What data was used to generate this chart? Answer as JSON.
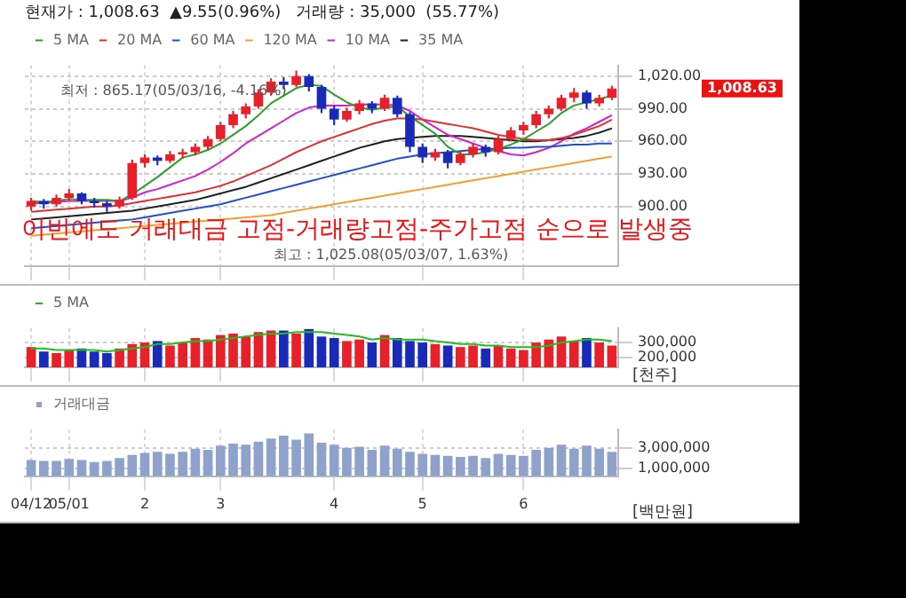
{
  "chart_data": [
    {
      "type": "candlestick",
      "title": "현재가 : 1,008.63  ▲9.55(0.96%)   거래량 : 35,000  (55.77%)",
      "legend": "top left",
      "grid": true,
      "tick_labels": "y",
      "ohlc": [
        [
          900,
          908,
          896,
          905
        ],
        [
          905,
          907,
          898,
          902
        ],
        [
          902,
          911,
          900,
          908
        ],
        [
          908,
          916,
          905,
          912
        ],
        [
          912,
          913,
          902,
          905
        ],
        [
          905,
          908,
          899,
          903
        ],
        [
          903,
          905,
          895,
          900
        ],
        [
          900,
          909,
          898,
          906
        ],
        [
          908,
          943,
          906,
          940
        ],
        [
          940,
          948,
          936,
          945
        ],
        [
          945,
          947,
          938,
          942
        ],
        [
          942,
          951,
          940,
          948
        ],
        [
          948,
          953,
          944,
          950
        ],
        [
          950,
          958,
          947,
          955
        ],
        [
          955,
          965,
          952,
          962
        ],
        [
          962,
          978,
          960,
          975
        ],
        [
          975,
          988,
          972,
          985
        ],
        [
          985,
          995,
          981,
          992
        ],
        [
          992,
          1008,
          990,
          1005
        ],
        [
          1005,
          1018,
          1002,
          1015
        ],
        [
          1015,
          1019,
          1008,
          1012
        ],
        [
          1012,
          1025.08,
          1010,
          1020
        ],
        [
          1020,
          1022,
          1006,
          1010
        ],
        [
          1010,
          1012,
          986,
          990
        ],
        [
          990,
          993,
          975,
          980
        ],
        [
          980,
          991,
          978,
          988
        ],
        [
          988,
          998,
          985,
          995
        ],
        [
          995,
          997,
          986,
          990
        ],
        [
          990,
          1003,
          988,
          1000
        ],
        [
          1000,
          1002,
          982,
          985
        ],
        [
          985,
          987,
          950,
          955
        ],
        [
          955,
          958,
          940,
          945
        ],
        [
          945,
          953,
          942,
          950
        ],
        [
          950,
          952,
          935,
          940
        ],
        [
          940,
          951,
          938,
          948
        ],
        [
          948,
          958,
          945,
          955
        ],
        [
          955,
          957,
          946,
          950
        ],
        [
          950,
          965,
          948,
          962
        ],
        [
          962,
          973,
          960,
          970
        ],
        [
          970,
          978,
          966,
          975
        ],
        [
          975,
          988,
          972,
          985
        ],
        [
          985,
          993,
          981,
          990
        ],
        [
          990,
          1003,
          988,
          1000
        ],
        [
          1000,
          1009,
          996,
          1005
        ],
        [
          1005,
          1007,
          990,
          995
        ],
        [
          995,
          1003,
          992,
          1000
        ],
        [
          1000,
          1011,
          998,
          1008.63
        ]
      ],
      "colors": [
        "#e8202a",
        "#1a2ab8",
        "#e8202a",
        "#e8202a",
        "#1a2ab8",
        "#1a2ab8",
        "#1a2ab8",
        "#e8202a",
        "#e8202a",
        "#e8202a",
        "#1a2ab8",
        "#e8202a",
        "#e8202a",
        "#e8202a",
        "#e8202a",
        "#e8202a",
        "#e8202a",
        "#e8202a",
        "#e8202a",
        "#e8202a",
        "#1a2ab8",
        "#e8202a",
        "#1a2ab8",
        "#1a2ab8",
        "#1a2ab8",
        "#e8202a",
        "#e8202a",
        "#1a2ab8",
        "#e8202a",
        "#1a2ab8",
        "#1a2ab8",
        "#1a2ab8",
        "#e8202a",
        "#1a2ab8",
        "#e8202a",
        "#e8202a",
        "#1a2ab8",
        "#e8202a",
        "#e8202a",
        "#e8202a",
        "#e8202a",
        "#e8202a",
        "#e8202a",
        "#e8202a",
        "#1a2ab8",
        "#e8202a",
        "#e8202a"
      ],
      "series": [
        {
          "type": "line",
          "name": "5 MA",
          "color": "#2ca02c",
          "values": [
            905,
            904,
            905,
            907,
            906,
            906,
            906,
            905,
            911,
            919,
            927,
            936,
            945,
            948,
            952,
            958,
            966,
            974,
            984,
            995,
            1002,
            1009,
            1012,
            1011,
            1003,
            996,
            991,
            989,
            991,
            992,
            983,
            975,
            967,
            955,
            948,
            948,
            950,
            953,
            957,
            962,
            969,
            976,
            986,
            993,
            996,
            999,
            1002
          ]
        },
        {
          "type": "line",
          "name": "20 MA",
          "color": "#e03030",
          "values": [
            895,
            896,
            897,
            898,
            899,
            900,
            900,
            901,
            903,
            905,
            907,
            909,
            911,
            913,
            916,
            919,
            923,
            928,
            933,
            938,
            944,
            950,
            955,
            960,
            964,
            968,
            972,
            976,
            979,
            981,
            981,
            980,
            978,
            976,
            974,
            972,
            969,
            966,
            964,
            962,
            961,
            961,
            963,
            966,
            970,
            974,
            980
          ]
        },
        {
          "type": "line",
          "name": "60 MA",
          "color": "#2050d0",
          "values": [
            880,
            881,
            882,
            883,
            884,
            885,
            886,
            887,
            888,
            890,
            892,
            894,
            896,
            898,
            900,
            902,
            905,
            908,
            911,
            914,
            917,
            920,
            923,
            926,
            929,
            932,
            935,
            938,
            941,
            944,
            946,
            948,
            949,
            950,
            951,
            952,
            953,
            953,
            954,
            954,
            955,
            955,
            956,
            957,
            957,
            958,
            958
          ]
        },
        {
          "type": "line",
          "name": "120 MA",
          "color": "#f0a030",
          "values": [
            873,
            874,
            875,
            876,
            877,
            878,
            879,
            880,
            881,
            882,
            883,
            884,
            885,
            886,
            887,
            888,
            889,
            890,
            891,
            892,
            894,
            896,
            898,
            900,
            902,
            904,
            906,
            908,
            910,
            912,
            914,
            916,
            918,
            920,
            922,
            924,
            926,
            928,
            930,
            932,
            934,
            936,
            938,
            940,
            942,
            944,
            946
          ]
        },
        {
          "type": "line",
          "name": "10 MA",
          "color": "#d020d0",
          "values": [
            903,
            903,
            904,
            905,
            905,
            905,
            905,
            905,
            908,
            913,
            916,
            920,
            924,
            928,
            934,
            941,
            949,
            958,
            965,
            972,
            979,
            986,
            991,
            993,
            993,
            993,
            994,
            994,
            994,
            993,
            988,
            980,
            973,
            966,
            962,
            958,
            954,
            951,
            948,
            947,
            950,
            954,
            960,
            967,
            972,
            978,
            984
          ]
        },
        {
          "type": "line",
          "name": "35 MA",
          "color": "#202020",
          "values": [
            888,
            889,
            890,
            891,
            892,
            893,
            894,
            895,
            896,
            898,
            900,
            902,
            904,
            906,
            909,
            912,
            915,
            918,
            922,
            926,
            930,
            934,
            938,
            942,
            946,
            950,
            954,
            957,
            960,
            962,
            963,
            964,
            965,
            965,
            965,
            964,
            963,
            962,
            961,
            960,
            960,
            961,
            962,
            963,
            965,
            968,
            972
          ]
        }
      ],
      "ylim": [
        845,
        1030
      ],
      "yticks": [
        {
          "value": 900,
          "label": "900.00"
        },
        {
          "value": 930,
          "label": "930.00"
        },
        {
          "value": 960,
          "label": "960.00"
        },
        {
          "value": 990,
          "label": "990.00"
        },
        {
          "value": 1020,
          "label": "1,020.00"
        }
      ],
      "annotations": [
        "이번에도 거래대금 고점-거래량고점-주가고점 순으로 발생중",
        "최저 : 865.17(05/03/16, -4.16%)",
        "최고 : 1,025.08(05/03/07, 1.63%)",
        "1,008.63"
      ]
    },
    {
      "type": "bar",
      "legend": "top left",
      "grid": true,
      "tick_labels": "y",
      "ylabel": "[천주]",
      "series": [
        {
          "type": "bar",
          "colors": [
            "#e8202a",
            "#1a2ab8",
            "#e8202a",
            "#e8202a",
            "#1a2ab8",
            "#1a2ab8",
            "#1a2ab8",
            "#e8202a",
            "#e8202a",
            "#e8202a",
            "#1a2ab8",
            "#e8202a",
            "#e8202a",
            "#e8202a",
            "#e8202a",
            "#e8202a",
            "#e8202a",
            "#e8202a",
            "#e8202a",
            "#e8202a",
            "#1a2ab8",
            "#e8202a",
            "#1a2ab8",
            "#1a2ab8",
            "#1a2ab8",
            "#e8202a",
            "#e8202a",
            "#1a2ab8",
            "#e8202a",
            "#1a2ab8",
            "#1a2ab8",
            "#1a2ab8",
            "#e8202a",
            "#1a2ab8",
            "#e8202a",
            "#e8202a",
            "#1a2ab8",
            "#e8202a",
            "#e8202a",
            "#e8202a",
            "#e8202a",
            "#e8202a",
            "#e8202a",
            "#e8202a",
            "#1a2ab8",
            "#e8202a",
            "#e8202a"
          ],
          "values": [
            270000,
            240000,
            230000,
            250000,
            260000,
            240000,
            230000,
            260000,
            290000,
            300000,
            310000,
            280000,
            300000,
            330000,
            320000,
            350000,
            360000,
            340000,
            370000,
            380000,
            380000,
            360000,
            390000,
            340000,
            330000,
            310000,
            320000,
            300000,
            350000,
            330000,
            310000,
            300000,
            290000,
            280000,
            270000,
            280000,
            260000,
            280000,
            260000,
            250000,
            300000,
            320000,
            340000,
            310000,
            330000,
            300000,
            280000
          ]
        },
        {
          "type": "line",
          "name": "5 MA",
          "color": "#22bb22",
          "values": [
            260000,
            260000,
            250000,
            250000,
            250000,
            250000,
            240000,
            250000,
            260000,
            270000,
            290000,
            290000,
            300000,
            310000,
            310000,
            320000,
            330000,
            340000,
            350000,
            360000,
            360000,
            370000,
            370000,
            370000,
            360000,
            350000,
            340000,
            320000,
            330000,
            320000,
            320000,
            320000,
            310000,
            300000,
            290000,
            290000,
            280000,
            280000,
            270000,
            270000,
            270000,
            280000,
            300000,
            310000,
            320000,
            320000,
            310000
          ]
        }
      ],
      "ylim": [
        135000,
        395000
      ],
      "yticks": [
        {
          "value": 200000,
          "label": "200,000"
        },
        {
          "value": 300000,
          "label": "300,000"
        }
      ]
    },
    {
      "type": "bar",
      "legend": "top left",
      "grid": true,
      "ylabel": "[백만원]",
      "categories": [
        "04/12",
        null,
        null,
        "05/01",
        null,
        null,
        null,
        null,
        null,
        "2",
        null,
        null,
        null,
        null,
        null,
        "3",
        null,
        null,
        null,
        null,
        null,
        null,
        null,
        null,
        "4",
        null,
        null,
        null,
        null,
        null,
        null,
        "5",
        null,
        null,
        null,
        null,
        null,
        null,
        null,
        "6",
        null,
        null,
        null,
        null,
        null,
        null,
        null
      ],
      "series": [
        {
          "type": "bar",
          "name": "거래대금",
          "color": "#8ea2cc",
          "values": [
            1800000,
            1700000,
            1700000,
            1900000,
            1800000,
            1600000,
            1700000,
            2000000,
            2300000,
            2500000,
            2600000,
            2400000,
            2600000,
            2900000,
            2800000,
            3200000,
            3400000,
            3300000,
            3600000,
            3900000,
            4200000,
            3800000,
            4400000,
            3500000,
            3300000,
            3000000,
            3100000,
            2800000,
            3200000,
            2900000,
            2600000,
            2400000,
            2300000,
            2200000,
            2100000,
            2200000,
            2000000,
            2400000,
            2300000,
            2200000,
            2800000,
            3000000,
            3300000,
            2900000,
            3200000,
            2900000,
            2600000
          ]
        }
      ],
      "ylim": [
        200000,
        4800000
      ],
      "yticks": [
        {
          "value": 1000000,
          "label": "1,000,000"
        },
        {
          "value": 3000000,
          "label": "3,000,000"
        }
      ]
    }
  ]
}
